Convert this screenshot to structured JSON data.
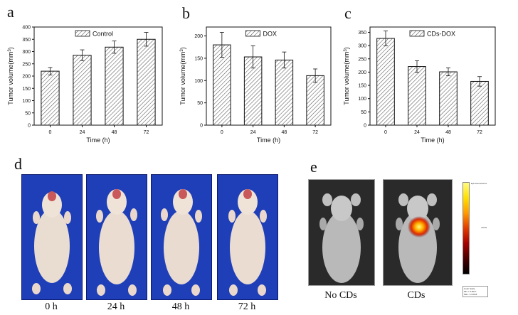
{
  "panels": {
    "a": "a",
    "b": "b",
    "c": "c",
    "d": "d",
    "e": "e"
  },
  "chart_data": [
    {
      "type": "bar",
      "panel": "a",
      "categories": [
        "0",
        "24",
        "48",
        "72"
      ],
      "series": [
        {
          "name": "Control",
          "values": [
            220,
            285,
            318,
            350
          ],
          "errors": [
            15,
            22,
            25,
            28
          ]
        }
      ],
      "xlabel": "Time (h)",
      "ylabel": "Tumor volume(mm",
      "ylabel_sup": "3",
      "ylim": [
        0,
        400
      ],
      "yticks": [
        0,
        50,
        100,
        150,
        200,
        250,
        300,
        350,
        400
      ],
      "legend": "top-center"
    },
    {
      "type": "bar",
      "panel": "b",
      "categories": [
        "0",
        "24",
        "48",
        "72"
      ],
      "series": [
        {
          "name": "DOX",
          "values": [
            180,
            153,
            146,
            111
          ],
          "errors": [
            28,
            25,
            18,
            15
          ]
        }
      ],
      "xlabel": "Time (h)",
      "ylabel": "Tumor volume(mm",
      "ylabel_sup": "3",
      "ylim": [
        0,
        220
      ],
      "yticks": [
        0,
        50,
        100,
        150,
        200
      ],
      "legend": "top-center"
    },
    {
      "type": "bar",
      "panel": "c",
      "categories": [
        "0",
        "24",
        "48",
        "72"
      ],
      "series": [
        {
          "name": "CDs-DOX",
          "values": [
            327,
            221,
            201,
            165
          ],
          "errors": [
            28,
            22,
            15,
            18
          ]
        }
      ],
      "xlabel": "Time (h)",
      "ylabel": "Tumor volume(mm",
      "ylabel_sup": "3",
      "ylim": [
        0,
        370
      ],
      "yticks": [
        0,
        50,
        100,
        150,
        200,
        250,
        300,
        350
      ],
      "legend": "top-center"
    }
  ],
  "photos": {
    "labels": [
      "0 h",
      "24 h",
      "48 h",
      "72 h"
    ],
    "background_color": "#1f3fb8"
  },
  "imaging": {
    "labels": [
      "No CDs",
      "CDs"
    ],
    "scale_title": "Epi-fluorescence",
    "scale_label_1": "Color Scale",
    "scale_label_2": "Min = 5.00e7",
    "scale_label_3": "Max = 2.00e8",
    "scale_unit": "x10^8"
  }
}
